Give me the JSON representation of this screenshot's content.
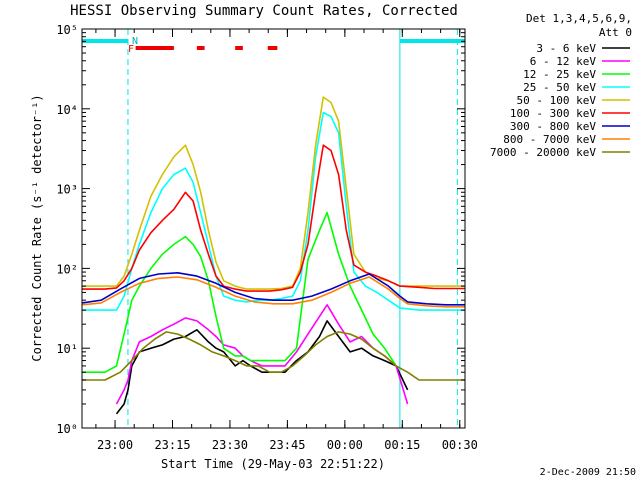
{
  "chart_data": {
    "type": "line",
    "title": "HESSI Observing Summary Count Rates, Corrected",
    "xlabel": "Start Time (29-May-03 22:51:22)",
    "ylabel": "Corrected Count Rate (s⁻¹ detector⁻¹)",
    "yscale": "log",
    "ylim": [
      1,
      100000
    ],
    "xlim_minutes_after_start": [
      0,
      100
    ],
    "x_tick_labels": [
      "23:00",
      "23:15",
      "23:30",
      "23:45",
      "00:00",
      "00:15",
      "00:30"
    ],
    "x_tick_minutes": [
      8.63,
      23.63,
      38.63,
      53.63,
      68.63,
      83.63,
      98.63
    ],
    "y_tick_labels": [
      "10⁰",
      "10¹",
      "10²",
      "10³",
      "10⁴",
      "10⁵"
    ],
    "y_tick_values": [
      1,
      10,
      100,
      1000,
      10000,
      100000
    ],
    "legend_header": [
      "Det 1,3,4,5,6,9,",
      "Att 0"
    ],
    "legend_placement": "right",
    "footer": "2-Dec-2009 21:50",
    "flags": {
      "N_label": "N",
      "F_label": "F",
      "night_intervals": [
        [
          0,
          12
        ],
        [
          83,
          100
        ]
      ],
      "flare_intervals": [
        [
          14,
          24
        ],
        [
          30,
          32
        ],
        [
          40,
          42
        ],
        [
          48.5,
          51
        ]
      ],
      "dashed_marker_minutes": [
        12,
        98
      ],
      "solid_marker_minutes": [
        83
      ]
    },
    "series": [
      {
        "name": "3 - 6 keV",
        "color": "#000000",
        "x": [
          9,
          11,
          12,
          13,
          15,
          18,
          21,
          24,
          27,
          30,
          33,
          35,
          37,
          40,
          42,
          44,
          47,
          50,
          53,
          56,
          59,
          62,
          64,
          67,
          70,
          73,
          76,
          79,
          82,
          85
        ],
        "y": [
          1.5,
          2,
          3,
          6,
          9,
          10,
          11,
          13,
          14,
          17,
          12,
          10,
          9,
          6,
          7,
          6,
          5,
          5,
          5,
          7,
          9,
          14,
          22,
          14,
          9,
          10,
          8,
          7,
          6,
          3
        ]
      },
      {
        "name": "6 - 12 keV",
        "color": "#ff00ff",
        "x": [
          9,
          11,
          12,
          13,
          15,
          18,
          21,
          24,
          27,
          30,
          33,
          35,
          37,
          40,
          42,
          44,
          47,
          50,
          53,
          56,
          59,
          62,
          64,
          67,
          70,
          73,
          76,
          79,
          82,
          85
        ],
        "y": [
          2,
          3,
          4,
          7,
          12,
          14,
          17,
          20,
          24,
          22,
          17,
          14,
          11,
          10,
          8,
          7,
          6,
          6,
          6,
          9,
          15,
          25,
          35,
          20,
          12,
          14,
          10,
          8,
          6,
          2
        ]
      },
      {
        "name": "12 - 25 keV",
        "color": "#00ff00",
        "x": [
          0,
          3,
          6,
          9,
          11,
          13,
          15,
          18,
          21,
          24,
          27,
          29,
          31,
          33,
          35,
          37,
          40,
          42,
          44,
          47,
          50,
          53,
          56,
          59,
          62,
          64,
          67,
          70,
          73,
          76,
          79,
          82
        ],
        "y": [
          5,
          5,
          5,
          6,
          15,
          40,
          60,
          100,
          150,
          200,
          250,
          200,
          140,
          70,
          25,
          10,
          8,
          8,
          7,
          7,
          7,
          7,
          10,
          130,
          300,
          500,
          150,
          60,
          30,
          15,
          10,
          6
        ]
      },
      {
        "name": "25 - 50 keV",
        "color": "#00ffff",
        "x": [
          0,
          3,
          6,
          9,
          11,
          13,
          15,
          18,
          21,
          24,
          27,
          29,
          31,
          33,
          35,
          37,
          40,
          43,
          46,
          49,
          52,
          55,
          57,
          59,
          61,
          63,
          65,
          67,
          69,
          71,
          74,
          77,
          80,
          83,
          88,
          92,
          100
        ],
        "y": [
          30,
          30,
          30,
          30,
          45,
          100,
          200,
          500,
          1000,
          1500,
          1800,
          1200,
          500,
          200,
          80,
          45,
          40,
          38,
          40,
          40,
          42,
          45,
          70,
          300,
          2500,
          9000,
          8000,
          5000,
          600,
          90,
          60,
          50,
          40,
          32,
          30,
          30,
          30
        ]
      },
      {
        "name": "50 - 100 keV",
        "color": "#d4c000",
        "x": [
          0,
          3,
          6,
          9,
          11,
          13,
          15,
          18,
          21,
          24,
          27,
          29,
          31,
          33,
          35,
          37,
          40,
          43,
          46,
          49,
          52,
          55,
          57,
          59,
          61,
          63,
          65,
          67,
          69,
          71,
          74,
          77,
          80,
          83,
          88,
          92,
          100
        ],
        "y": [
          60,
          60,
          60,
          60,
          80,
          150,
          300,
          800,
          1500,
          2500,
          3500,
          2000,
          900,
          300,
          120,
          70,
          60,
          55,
          55,
          55,
          56,
          60,
          100,
          500,
          3500,
          14000,
          12000,
          7000,
          1000,
          150,
          90,
          75,
          70,
          60,
          60,
          60,
          60
        ]
      },
      {
        "name": "100 - 300 keV",
        "color": "#ff0000",
        "x": [
          0,
          3,
          6,
          9,
          11,
          13,
          15,
          18,
          21,
          24,
          27,
          29,
          31,
          33,
          35,
          37,
          40,
          43,
          46,
          49,
          52,
          55,
          57,
          59,
          61,
          63,
          65,
          67,
          69,
          71,
          74,
          77,
          80,
          83,
          88,
          92,
          100
        ],
        "y": [
          55,
          55,
          55,
          57,
          70,
          100,
          170,
          280,
          400,
          550,
          900,
          700,
          300,
          150,
          80,
          60,
          55,
          52,
          52,
          52,
          54,
          58,
          90,
          200,
          900,
          3500,
          3000,
          1500,
          300,
          110,
          90,
          80,
          70,
          60,
          58,
          56,
          56
        ]
      },
      {
        "name": "300 - 800 keV",
        "color": "#0000cc",
        "x": [
          0,
          5,
          10,
          15,
          20,
          25,
          30,
          35,
          40,
          45,
          50,
          55,
          60,
          65,
          70,
          75,
          80,
          83,
          85,
          90,
          95,
          100
        ],
        "y": [
          37,
          40,
          55,
          75,
          85,
          88,
          80,
          65,
          50,
          42,
          40,
          40,
          45,
          55,
          70,
          85,
          60,
          45,
          38,
          36,
          35,
          35
        ]
      },
      {
        "name": "800 - 7000 keV",
        "color": "#ff8000",
        "x": [
          0,
          5,
          10,
          15,
          20,
          25,
          30,
          35,
          40,
          45,
          50,
          55,
          60,
          65,
          70,
          75,
          80,
          83,
          85,
          90,
          95,
          100
        ],
        "y": [
          35,
          37,
          50,
          65,
          75,
          78,
          72,
          58,
          45,
          38,
          36,
          36,
          40,
          50,
          65,
          78,
          55,
          42,
          36,
          34,
          33,
          33
        ]
      },
      {
        "name": "7000 - 20000 keV",
        "color": "#808000",
        "x": [
          0,
          3,
          6,
          10,
          13,
          16,
          19,
          22,
          25,
          28,
          31,
          34,
          37,
          40,
          43,
          46,
          49,
          52,
          55,
          58,
          61,
          64,
          67,
          70,
          73,
          76,
          79,
          82,
          85,
          88,
          91,
          95,
          100
        ],
        "y": [
          4,
          4,
          4,
          5,
          7,
          10,
          13,
          16,
          15,
          13,
          11,
          9,
          8,
          7,
          6,
          6,
          5,
          5,
          6,
          8,
          11,
          14,
          16,
          15,
          13,
          10,
          8,
          6,
          5,
          4,
          4,
          4,
          4
        ]
      }
    ]
  }
}
